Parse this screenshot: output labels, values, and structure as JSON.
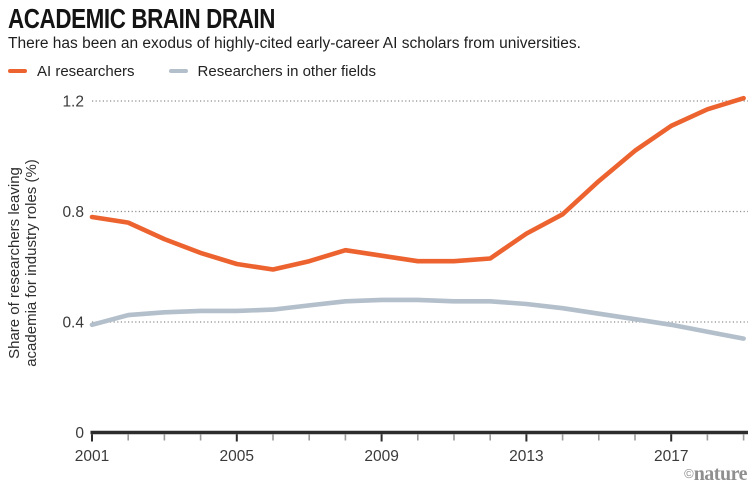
{
  "header": {
    "title": "ACADEMIC BRAIN DRAIN",
    "subtitle": "There has been an exodus of highly-cited early-career AI scholars from universities."
  },
  "legend": [
    {
      "label": "AI researchers",
      "color": "#ED6330"
    },
    {
      "label": "Researchers in other fields",
      "color": "#B3BFCB"
    }
  ],
  "axes": {
    "y_label_line1": "Share of researchers leaving",
    "y_label_line2": "academia for industry roles (%)",
    "y_tick_labels": [
      "0",
      "0.4",
      "0.8",
      "1.2"
    ],
    "x_tick_labels": [
      "2001",
      "2005",
      "2009",
      "2013",
      "2017"
    ]
  },
  "credit": {
    "symbol": "©",
    "name": "nature"
  },
  "chart_data": {
    "type": "line",
    "title": "ACADEMIC BRAIN DRAIN",
    "subtitle": "There has been an exodus of highly-cited early-career AI scholars from universities.",
    "xlabel": "",
    "ylabel": "Share of researchers leaving academia for industry roles (%)",
    "x": [
      2001,
      2002,
      2003,
      2004,
      2005,
      2006,
      2007,
      2008,
      2009,
      2010,
      2011,
      2012,
      2013,
      2014,
      2015,
      2016,
      2017,
      2018,
      2019
    ],
    "series": [
      {
        "name": "AI researchers",
        "color": "#ED6330",
        "values": [
          0.78,
          0.76,
          0.7,
          0.65,
          0.61,
          0.59,
          0.62,
          0.66,
          0.64,
          0.62,
          0.62,
          0.63,
          0.72,
          0.79,
          0.91,
          1.02,
          1.11,
          1.17,
          1.21
        ]
      },
      {
        "name": "Researchers in other fields",
        "color": "#B3BFCB",
        "values": [
          0.39,
          0.425,
          0.435,
          0.44,
          0.44,
          0.445,
          0.46,
          0.475,
          0.48,
          0.48,
          0.475,
          0.475,
          0.465,
          0.45,
          0.43,
          0.41,
          0.39,
          0.365,
          0.34
        ]
      }
    ],
    "ylim": [
      0,
      1.3
    ],
    "yticks": [
      0,
      0.4,
      0.8,
      1.2
    ],
    "xticks_labeled": [
      2001,
      2005,
      2009,
      2013,
      2017
    ],
    "xticks_minor_every_year": true,
    "grid": "horizontal-dotted",
    "legend_position": "top-left",
    "gridline_color": "#8d8d8d",
    "axis_color": "#2d2d2d",
    "tick_label_color": "#3a3a3a",
    "minor_tick_color": "#9b9b9b"
  }
}
